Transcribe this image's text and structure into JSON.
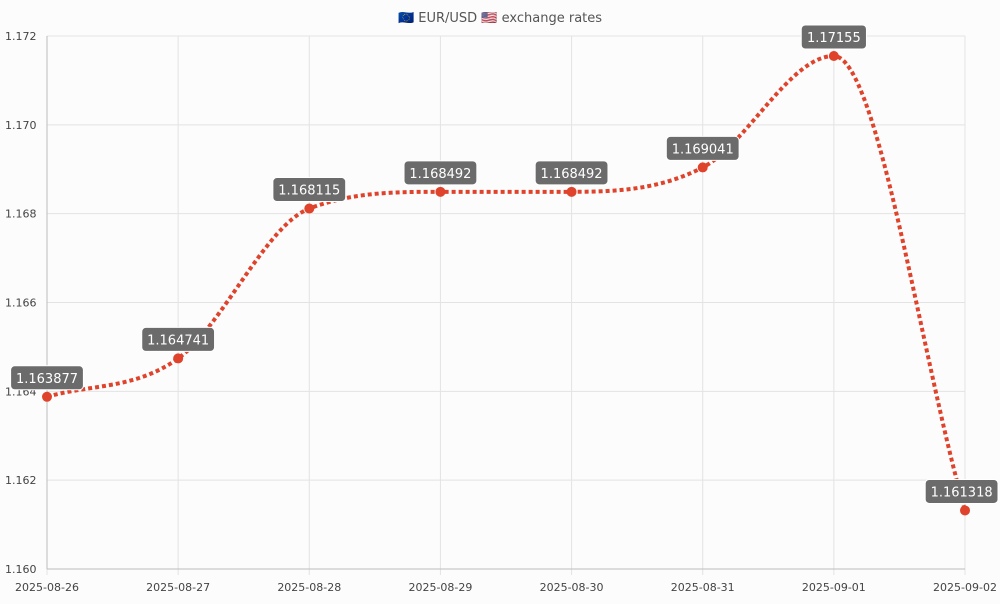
{
  "colors": {
    "line": "#e0432b",
    "grid": "#e3e3e3",
    "axis": "#bdbdbd",
    "label_bg": "#6b6b6b",
    "label_text": "#ffffff",
    "tick_text": "#444444"
  },
  "chart_data": {
    "type": "line",
    "title": "🇪🇺 EUR/USD 🇺🇸 exchange rates",
    "x": [
      "2025-08-26",
      "2025-08-27",
      "2025-08-28",
      "2025-08-29",
      "2025-08-30",
      "2025-08-31",
      "2025-09-01",
      "2025-09-02"
    ],
    "series": [
      {
        "values": [
          1.163877,
          1.164741,
          1.168115,
          1.168492,
          1.168492,
          1.169041,
          1.17155,
          1.161318
        ],
        "data_labels": [
          "1.163877",
          "1.164741",
          "1.168115",
          "1.168492",
          "1.168492",
          "1.169041",
          "1.17155",
          "1.161318"
        ],
        "line_style": "dotted",
        "smooth": true
      }
    ],
    "ylim": [
      1.16,
      1.172
    ],
    "y_ticks": [
      1.16,
      1.162,
      1.164,
      1.166,
      1.168,
      1.17,
      1.172
    ],
    "y_tick_labels": [
      "1.160",
      "1.162",
      "1.164",
      "1.166",
      "1.168",
      "1.170",
      "1.172"
    ],
    "grid": true,
    "legend": "none",
    "xlabel": "",
    "ylabel": ""
  }
}
